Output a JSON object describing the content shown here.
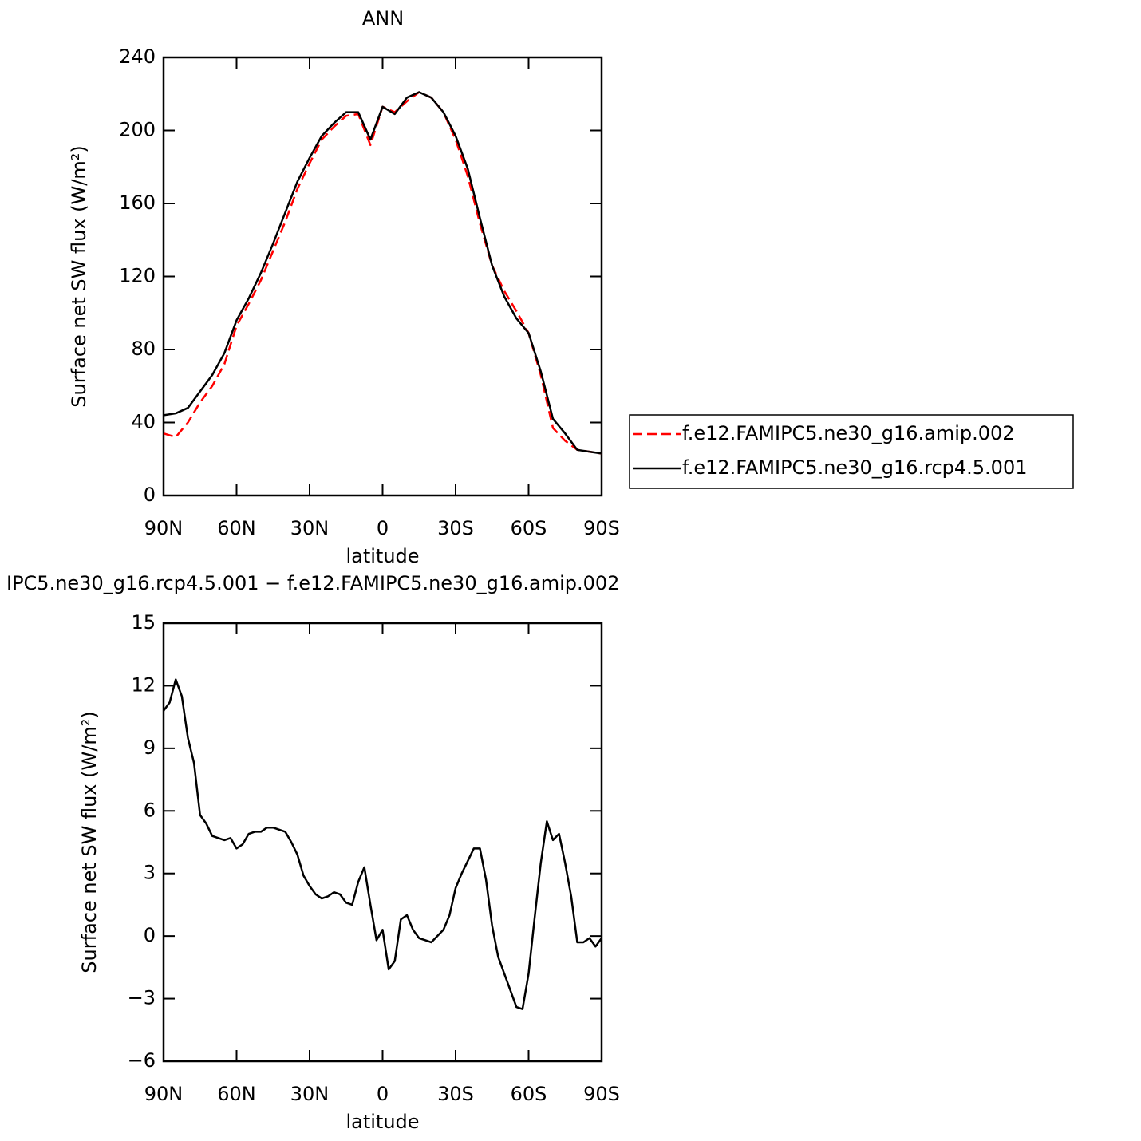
{
  "chart_data": [
    {
      "type": "line",
      "title": "ANN",
      "xlabel": "latitude",
      "ylabel": "Surface net SW flux (W/m²)",
      "x": [
        90,
        85,
        80,
        75,
        70,
        65,
        60,
        55,
        50,
        45,
        40,
        35,
        30,
        25,
        20,
        15,
        10,
        5,
        0,
        -5,
        -10,
        -15,
        -20,
        -25,
        -30,
        -35,
        -40,
        -45,
        -50,
        -55,
        -60,
        -65,
        -70,
        -75,
        -80,
        -85,
        -90
      ],
      "xlim": [
        90,
        -90
      ],
      "xticks": [
        {
          "value": 90,
          "label": "90N"
        },
        {
          "value": 60,
          "label": "60N"
        },
        {
          "value": 30,
          "label": "30N"
        },
        0,
        {
          "value": -30,
          "label": "30S"
        },
        {
          "value": -60,
          "label": "60S"
        },
        {
          "value": -90,
          "label": "90S"
        }
      ],
      "ylim": [
        0,
        240
      ],
      "yticks": [
        0,
        40,
        80,
        120,
        160,
        200,
        240
      ],
      "legend": "right",
      "series": [
        {
          "name": "f.e12.FAMIPC5.ne30_g16.amip.002",
          "color": "#ff0000",
          "dash": true,
          "values": [
            34,
            32,
            40,
            51,
            60,
            72,
            93,
            105,
            118,
            134,
            150,
            168,
            182,
            195,
            202,
            208,
            209,
            192,
            213,
            210,
            216,
            221,
            218,
            210,
            195,
            175,
            149,
            126,
            112,
            101,
            89,
            66,
            37,
            30,
            25,
            24,
            23
          ]
        },
        {
          "name": "f.e12.FAMIPC5.ne30_g16.rcp4.5.001",
          "color": "#000000",
          "dash": false,
          "values": [
            44,
            45,
            48,
            57,
            66,
            78,
            96,
            108,
            122,
            138,
            155,
            172,
            185,
            197,
            204,
            210,
            210,
            195,
            213,
            209,
            218,
            221,
            218,
            210,
            197,
            179,
            152,
            126,
            109,
            97,
            89,
            68,
            42,
            34,
            25,
            24,
            23
          ]
        }
      ]
    },
    {
      "type": "line",
      "title": "IPC5.ne30_g16.rcp4.5.001 − f.e12.FAMIPC5.ne30_g16.amip.002",
      "xlabel": "latitude",
      "ylabel": "Surface net SW flux (W/m²)",
      "x": [
        90,
        87.5,
        85,
        82.5,
        80,
        77.5,
        75,
        72.5,
        70,
        67.5,
        65,
        62.5,
        60,
        57.5,
        55,
        52.5,
        50,
        47.5,
        45,
        42.5,
        40,
        37.5,
        35,
        32.5,
        30,
        27.5,
        25,
        22.5,
        20,
        17.5,
        15,
        12.5,
        10,
        7.5,
        5,
        2.5,
        0,
        -2.5,
        -5,
        -7.5,
        -10,
        -12.5,
        -15,
        -17.5,
        -20,
        -22.5,
        -25,
        -27.5,
        -30,
        -32.5,
        -35,
        -37.5,
        -40,
        -42.5,
        -45,
        -47.5,
        -50,
        -52.5,
        -55,
        -57.5,
        -60,
        -62.5,
        -65,
        -67.5,
        -70,
        -72.5,
        -75,
        -77.5,
        -80,
        -82.5,
        -85,
        -87.5,
        -90
      ],
      "xlim": [
        90,
        -90
      ],
      "xticks": [
        {
          "value": 90,
          "label": "90N"
        },
        {
          "value": 60,
          "label": "60N"
        },
        {
          "value": 30,
          "label": "30N"
        },
        0,
        {
          "value": -30,
          "label": "30S"
        },
        {
          "value": -60,
          "label": "60S"
        },
        {
          "value": -90,
          "label": "90S"
        }
      ],
      "ylim": [
        -6,
        15
      ],
      "yticks": [
        {
          "value": -6,
          "label": "−6"
        },
        {
          "value": -3,
          "label": "−3"
        },
        0,
        3,
        6,
        9,
        12,
        15
      ],
      "series": [
        {
          "color": "#000000",
          "dash": false,
          "values": [
            10.8,
            11.2,
            12.3,
            11.5,
            9.5,
            8.3,
            5.8,
            5.4,
            4.8,
            4.7,
            4.6,
            4.7,
            4.2,
            4.4,
            4.9,
            5.0,
            5.0,
            5.2,
            5.2,
            5.1,
            5.0,
            4.5,
            3.9,
            2.9,
            2.4,
            2.0,
            1.8,
            1.9,
            2.1,
            2.0,
            1.6,
            1.5,
            2.6,
            3.3,
            1.5,
            -0.2,
            0.3,
            -1.6,
            -1.2,
            0.8,
            1.0,
            0.3,
            -0.1,
            -0.2,
            -0.3,
            0.0,
            0.3,
            1.0,
            2.3,
            3.0,
            3.6,
            4.2,
            4.2,
            2.7,
            0.5,
            -1.0,
            -1.8,
            -2.6,
            -3.4,
            -3.5,
            -1.8,
            0.9,
            3.5,
            5.5,
            4.6,
            4.9,
            3.5,
            1.9,
            -0.3,
            -0.3,
            -0.1,
            -0.5,
            -0.1
          ]
        }
      ]
    }
  ]
}
